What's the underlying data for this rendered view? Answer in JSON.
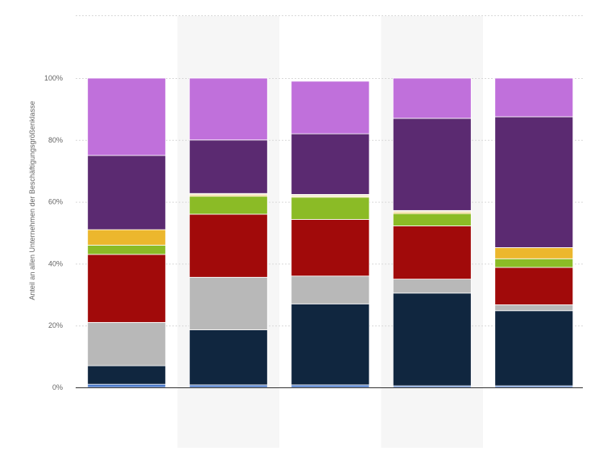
{
  "chart_data": {
    "type": "bar",
    "stacked": true,
    "categories": [
      "",
      "",
      "",
      "",
      ""
    ],
    "ylabel": "Anteil an allen Unternehmen der Beschäftigungsgrößenklasse",
    "ylim": [
      0,
      100
    ],
    "yticks": [
      "0%",
      "20%",
      "40%",
      "60%",
      "80%",
      "100%"
    ],
    "grid": true,
    "highlighted_columns": [
      1,
      3
    ],
    "series": [
      {
        "color": "#4a79c9",
        "values": [
          1,
          0.8,
          0.8,
          0.5,
          0.5
        ]
      },
      {
        "color": "#10263f",
        "values": [
          6,
          17.8,
          26.2,
          30,
          24.3
        ]
      },
      {
        "color": "#b8b8b8",
        "values": [
          14,
          17,
          9,
          4.5,
          1.9
        ]
      },
      {
        "color": "#a10a0a",
        "values": [
          22,
          20.4,
          18.3,
          17.2,
          12.1
        ]
      },
      {
        "color": "#8bbb26",
        "values": [
          3,
          5.8,
          7.2,
          4,
          2.8
        ]
      },
      {
        "color": "#ecb72d",
        "values": [
          5,
          0.4,
          0.3,
          0.4,
          3.6
        ]
      },
      {
        "color": "#f0e8c8",
        "values": [
          0,
          0.5,
          0.6,
          0.6,
          0
        ]
      },
      {
        "color": "#5b2a71",
        "values": [
          24,
          17.3,
          19.6,
          29.8,
          42.3
        ]
      },
      {
        "color": "#c070db",
        "values": [
          25,
          20,
          17,
          13,
          12.5
        ]
      }
    ]
  }
}
